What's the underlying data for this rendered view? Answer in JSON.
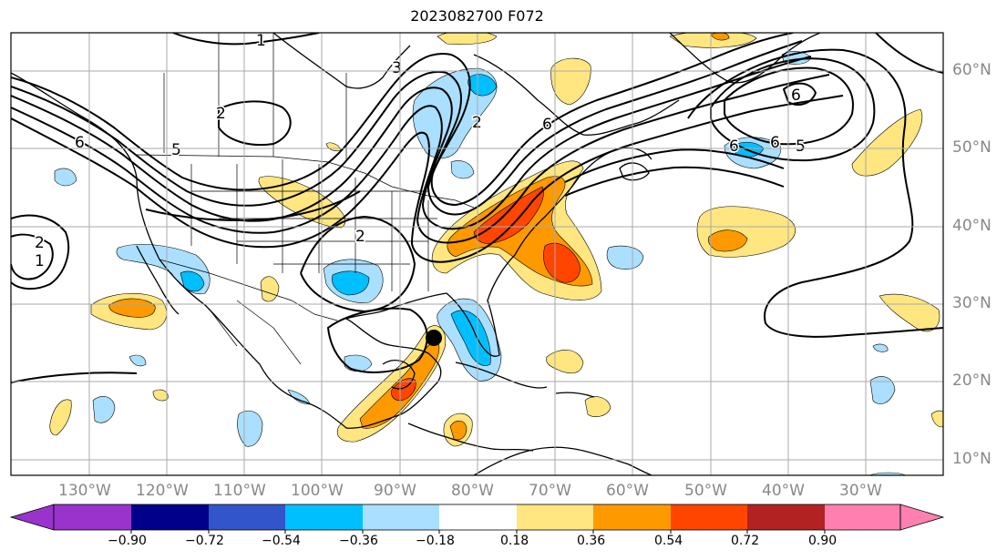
{
  "title": "2023082700 F072",
  "lat_labels": [
    "60°N",
    "50°N",
    "40°N",
    "30°N",
    "20°N",
    "10°N"
  ],
  "lon_labels": [
    "130°W",
    "120°W",
    "110°W",
    "100°W",
    "90°W",
    "80°W",
    "70°W",
    "60°W",
    "50°W",
    "40°W",
    "30°W"
  ],
  "contour_labels": [
    "1",
    "3",
    "2",
    "6",
    "5",
    "6",
    "6",
    "6",
    "5",
    "2",
    "1",
    "2",
    "2",
    "6"
  ],
  "colorbar": {
    "ticks": [
      "−0.90",
      "−0.72",
      "−0.54",
      "−0.36",
      "−0.18",
      "0.18",
      "0.36",
      "0.54",
      "0.72",
      "0.90"
    ],
    "colors": [
      "#9933cc",
      "#00008b",
      "#3355cc",
      "#00bfff",
      "#aadfff",
      "#ffffff",
      "#ffe680",
      "#ff9900",
      "#ff4500",
      "#b22222",
      "#ff80b0"
    ]
  },
  "colors": {
    "light_orange": "#ffe680",
    "orange": "#ff9900",
    "red_orange": "#ff4500",
    "light_blue": "#aadfff",
    "blue": "#00bfff",
    "grid": "#aaaaaa"
  },
  "marker": "storm-center"
}
